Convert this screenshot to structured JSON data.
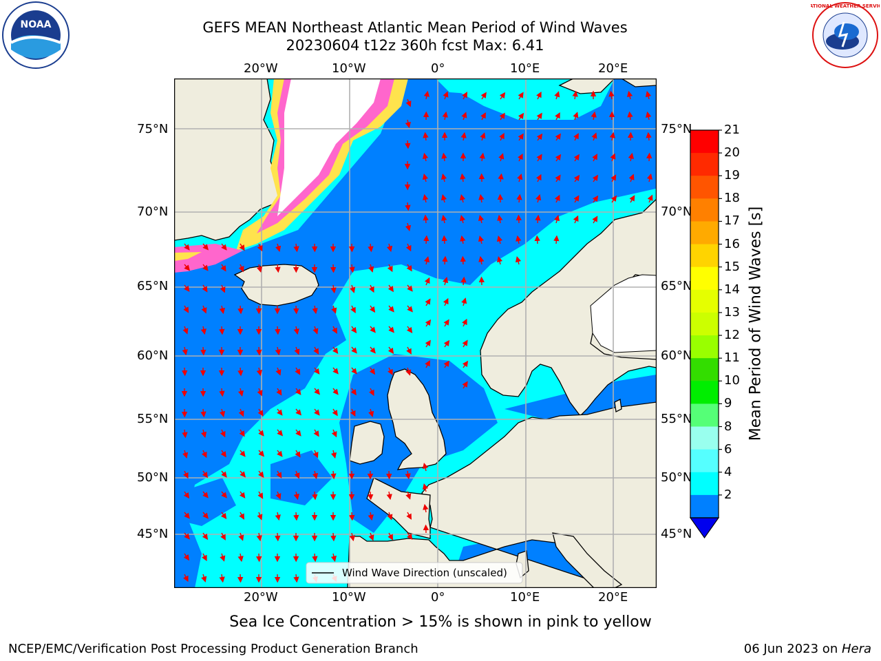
{
  "title_line1": "GEFS MEAN Northeast Atlantic Mean Period of Wind Waves",
  "title_line2": "20230604 t12z 360h fcst   Max: 6.41",
  "lon_ticks": [
    "20°W",
    "10°W",
    "0°",
    "10°E",
    "20°E"
  ],
  "lat_ticks": [
    "75°N",
    "70°N",
    "65°N",
    "60°N",
    "55°N",
    "50°N",
    "45°N"
  ],
  "legend_label": "Wind Wave Direction (unscaled)",
  "colorbar": {
    "label": "Mean Period of Wind Waves [s]",
    "ticks": [
      "21",
      "20",
      "19",
      "18",
      "17",
      "16",
      "15",
      "14",
      "13",
      "12",
      "11",
      "10",
      "9",
      "8",
      "6",
      "4",
      "2"
    ],
    "colors": [
      "#ff0000",
      "#ff2a00",
      "#ff5500",
      "#ff8000",
      "#ffaa00",
      "#ffd400",
      "#ffff00",
      "#e5ff00",
      "#ccff00",
      "#99ff00",
      "#33dd00",
      "#00ee00",
      "#55ff77",
      "#99ffee",
      "#55ffff",
      "#00ffff",
      "#0080ff"
    ],
    "extend_color": "#0000ee"
  },
  "map_colors": {
    "land": "#efedde",
    "ocean_low": "#0080ff",
    "ocean_mid": "#00ffff",
    "ice": "#ffffff",
    "ice_edge_pink": "#ff66cc",
    "ice_edge_yellow": "#ffe34d",
    "arrow": "#ee0000"
  },
  "max_value": 6.41,
  "caption": "Sea Ice Concentration > 15% is shown in pink to yellow",
  "footer_left": "NCEP/EMC/Verification Post Processing Product Generation Branch",
  "footer_date": "06 Jun 2023 on ",
  "footer_host": "Hera",
  "logo_left_text": "NOAA",
  "logo_right_text": "NATIONAL WEATHER SERVICE"
}
